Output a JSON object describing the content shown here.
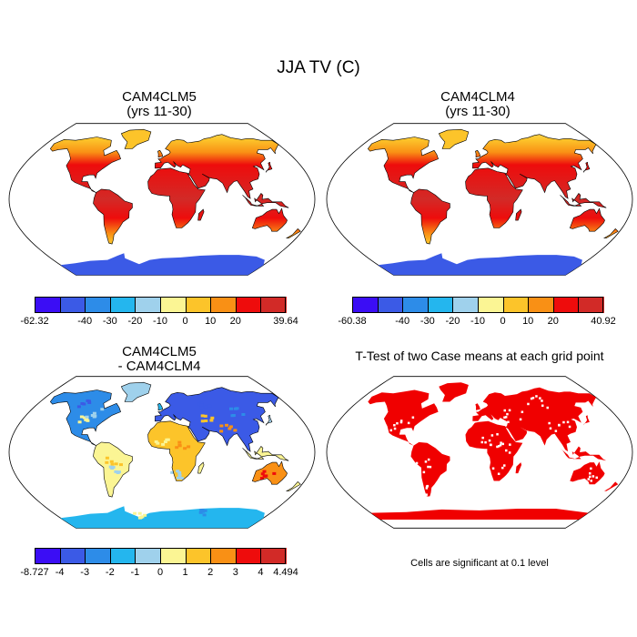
{
  "figure": {
    "title": "JJA TV (C)"
  },
  "panels": [
    {
      "id": "cam4clm5",
      "title_line1": "CAM4CLM5",
      "title_line2": "(yrs 11-30)",
      "field": "absolute",
      "colorbar": {
        "labels": [
          "-62.32",
          "-40",
          "-30",
          "-20",
          "-10",
          "0",
          "10",
          "20",
          "39.64"
        ],
        "colors": [
          "#3b0df5",
          "#3b5ae6",
          "#2d8ce8",
          "#24b6ee",
          "#9fd1ec",
          "#fbf594",
          "#fcc42a",
          "#f99015",
          "#ee0c0c",
          "#d22a27"
        ]
      }
    },
    {
      "id": "cam4clm4",
      "title_line1": "CAM4CLM4",
      "title_line2": "(yrs 11-30)",
      "field": "absolute",
      "colorbar": {
        "labels": [
          "-60.38",
          "-40",
          "-30",
          "-20",
          "-10",
          "0",
          "10",
          "20",
          "40.92"
        ],
        "colors": [
          "#3b0df5",
          "#3b5ae6",
          "#2d8ce8",
          "#24b6ee",
          "#9fd1ec",
          "#fbf594",
          "#fcc42a",
          "#f99015",
          "#ee0c0c",
          "#d22a27"
        ]
      }
    },
    {
      "id": "difference",
      "title_line1": "CAM4CLM5",
      "title_line2": "- CAM4CLM4",
      "field": "difference",
      "colorbar": {
        "labels": [
          "-8.727",
          "-4",
          "-3",
          "-2",
          "-1",
          "0",
          "1",
          "2",
          "3",
          "4",
          "4.494"
        ],
        "colors": [
          "#3b0df5",
          "#3b5ae6",
          "#2d8ce8",
          "#24b6ee",
          "#9fd1ec",
          "#fbf594",
          "#fcc42a",
          "#f99015",
          "#ee0c0c",
          "#d22a27"
        ]
      }
    },
    {
      "id": "ttest",
      "title_line1": "T-Test of two Case means at each grid point",
      "field": "significance",
      "note": "Cells are significant at 0.1 level",
      "colors": {
        "significant": "#f00000"
      }
    }
  ]
}
